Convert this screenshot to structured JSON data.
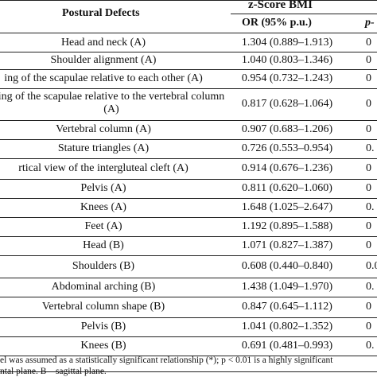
{
  "header": {
    "col_defects": "Postural Defects",
    "group": "z-Score BMI",
    "col_or": "OR (95% p.u.)",
    "col_p": "p-"
  },
  "rows": [
    {
      "defect": "Head and neck (A)",
      "or": "1.304 (0.889–1.913)",
      "p": "0"
    },
    {
      "defect": "Shoulder alignment (A)",
      "or": "1.040 (0.803–1.346)",
      "p": "0"
    },
    {
      "defect": "ing of the scapulae relative to each other (A)",
      "or": "0.954 (0.732–1.243)",
      "p": "0"
    },
    {
      "defect": "ing of the scapulae relative to the vertebral column (A)",
      "or": "0.817 (0.628–1.064)",
      "p": "0"
    },
    {
      "defect": "Vertebral column (A)",
      "or": "0.907 (0.683–1.206)",
      "p": "0"
    },
    {
      "defect": "Stature triangles (A)",
      "or": "0.726 (0.553–0.954)",
      "p": "0."
    },
    {
      "defect": "rtical view of the intergluteal cleft (A)",
      "or": "0.914 (0.676–1.236)",
      "p": "0"
    },
    {
      "defect": "Pelvis (A)",
      "or": "0.811 (0.620–1.060)",
      "p": "0"
    },
    {
      "defect": "Knees (A)",
      "or": "1.648 (1.025–2.647)",
      "p": "0."
    },
    {
      "defect": "Feet (A)",
      "or": "1.192 (0.895–1.588)",
      "p": "0"
    },
    {
      "defect": "Head (B)",
      "or": "1.071 (0.827–1.387)",
      "p": "0"
    },
    {
      "defect": "Shoulders (B)",
      "or": "0.608 (0.440–0.840)",
      "p": "0.0"
    },
    {
      "defect": "Abdominal arching (B)",
      "or": "1.438 (1.049–1.970)",
      "p": "0."
    },
    {
      "defect": "Vertebral column shape (B)",
      "or": "0.847 (0.645–1.112)",
      "p": "0"
    },
    {
      "defect": "Pelvis (B)",
      "or": "1.041 (0.802–1.352)",
      "p": "0"
    },
    {
      "defect": "Knees (B)",
      "or": "0.691 (0.481–0.993)",
      "p": "0."
    }
  ],
  "footnote": {
    "line1": "el was assumed as a statistically significant relationship (*); p < 0.01 is a highly significant",
    "line2": "ntal plane. B—sagittal plane."
  }
}
